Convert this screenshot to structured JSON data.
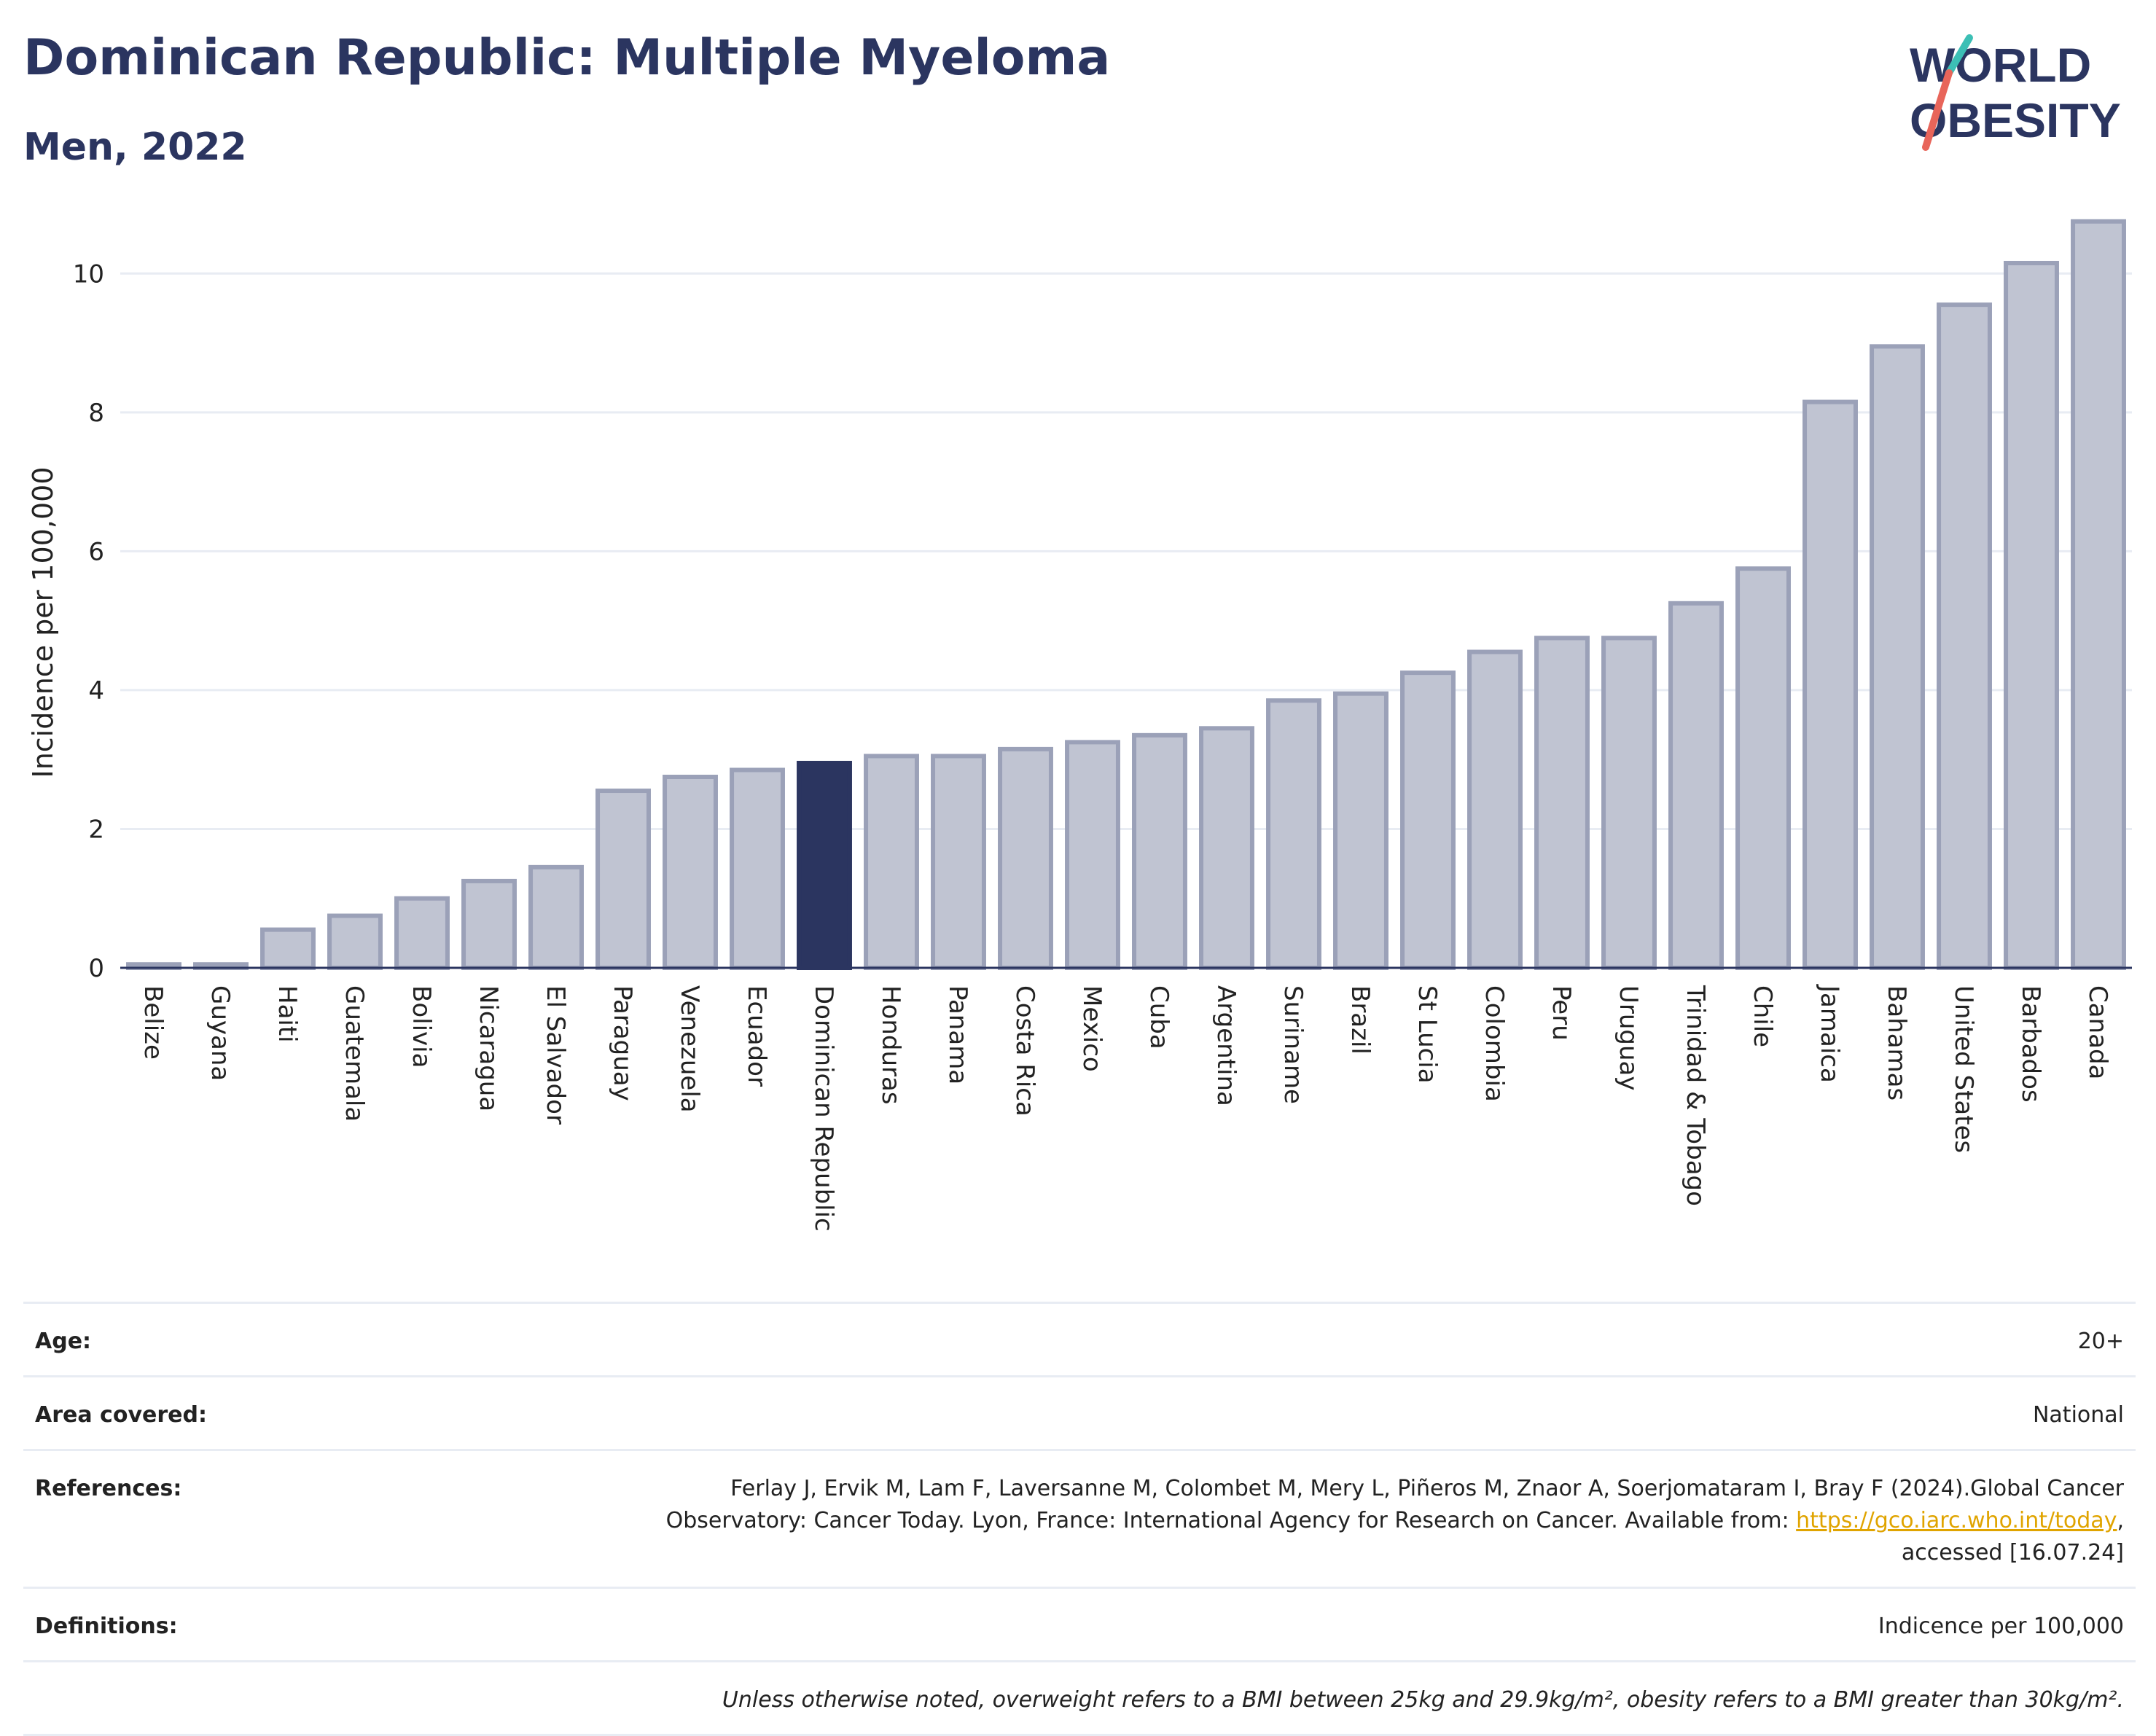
{
  "header": {
    "title": "Dominican Republic: Multiple Myeloma",
    "subtitle": "Men, 2022"
  },
  "logo": {
    "line1": "WORLD",
    "line2": "OBESITY",
    "accent_colors": [
      "#3cbfb5",
      "#e8655a"
    ]
  },
  "colors": {
    "bar": "#c0c4d2",
    "bar_border": "#9ba1b8",
    "highlight": "#2b3560",
    "title": "#2b3560",
    "grid": "#e8ecf3"
  },
  "chart_data": {
    "type": "bar",
    "categories": [
      "Belize",
      "Guyana",
      "Haiti",
      "Guatemala",
      "Bolivia",
      "Nicaragua",
      "El Salvador",
      "Paraguay",
      "Venezuela",
      "Ecuador",
      "Dominican Republic",
      "Honduras",
      "Panama",
      "Costa Rica",
      "Mexico",
      "Cuba",
      "Argentina",
      "Suriname",
      "Brazil",
      "St Lucia",
      "Colombia",
      "Peru",
      "Uruguay",
      "Trinidad & Tobago",
      "Chile",
      "Jamaica",
      "Bahamas",
      "United States",
      "Barbados",
      "Canada"
    ],
    "values": [
      0.05,
      0.05,
      0.55,
      0.75,
      1.0,
      1.25,
      1.45,
      2.55,
      2.75,
      2.85,
      2.95,
      3.05,
      3.05,
      3.15,
      3.25,
      3.35,
      3.45,
      3.85,
      3.95,
      4.25,
      4.55,
      4.75,
      4.75,
      5.25,
      5.75,
      8.15,
      8.95,
      9.55,
      10.15,
      10.75
    ],
    "highlight": "Dominican Republic",
    "ylabel": "Incidence per 100,000",
    "xlabel": "",
    "ylim": [
      0,
      11
    ],
    "yticks": [
      0,
      2,
      4,
      6,
      8,
      10
    ],
    "grid": true
  },
  "meta": {
    "age_label": "Age:",
    "age_value": "20+",
    "area_label": "Area covered:",
    "area_value": "National",
    "ref_label": "References:",
    "ref_text_1": "Ferlay J, Ervik M, Lam F, Laversanne M, Colombet M, Mery L, Piñeros M, Znaor A, Soerjomataram I, Bray F (2024).Global Cancer",
    "ref_text_2": "Observatory: Cancer Today. Lyon, France: International Agency for Research on Cancer. Available from: ",
    "ref_link": "https://gco.iarc.who.int/today",
    "ref_text_3": ",",
    "ref_text_4": "accessed [16.07.24]",
    "def_label": "Definitions:",
    "def_value": "Indicence per 100,000",
    "note": "Unless otherwise noted, overweight refers to a BMI between 25kg and 29.9kg/m², obesity refers to a BMI greater than 30kg/m²."
  }
}
